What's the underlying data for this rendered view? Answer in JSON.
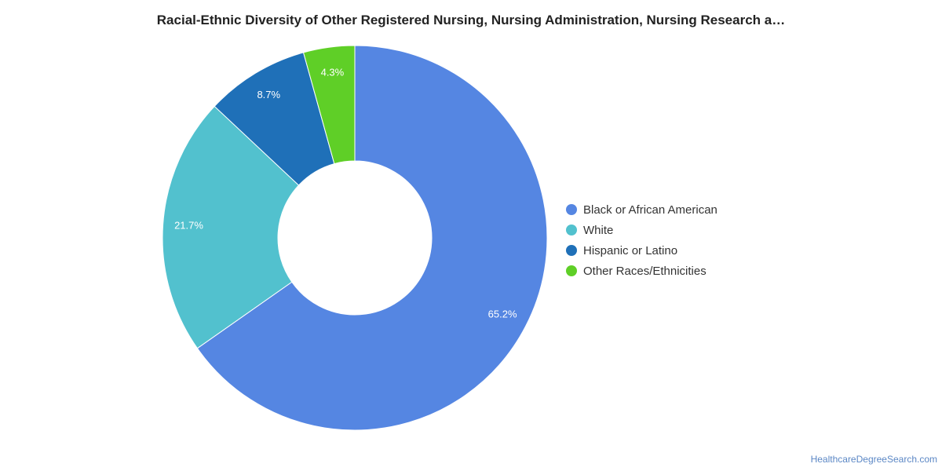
{
  "chart_data": {
    "type": "pie",
    "title": "Racial-Ethnic Diversity of Other Registered Nursing, Nursing Administration, Nursing Research a…",
    "donut": true,
    "categories": [
      "Black or African American",
      "White",
      "Hispanic or Latino",
      "Other Races/Ethnicities"
    ],
    "values": [
      65.2,
      21.7,
      8.7,
      4.3
    ],
    "data_labels": [
      "65.2%",
      "21.7%",
      "8.7%",
      "4.3%"
    ],
    "colors": [
      "#5586e2",
      "#52c1ce",
      "#1f70b8",
      "#5fcf27"
    ],
    "legend_position": "right"
  },
  "footer": {
    "source": "HealthcareDegreeSearch.com"
  }
}
